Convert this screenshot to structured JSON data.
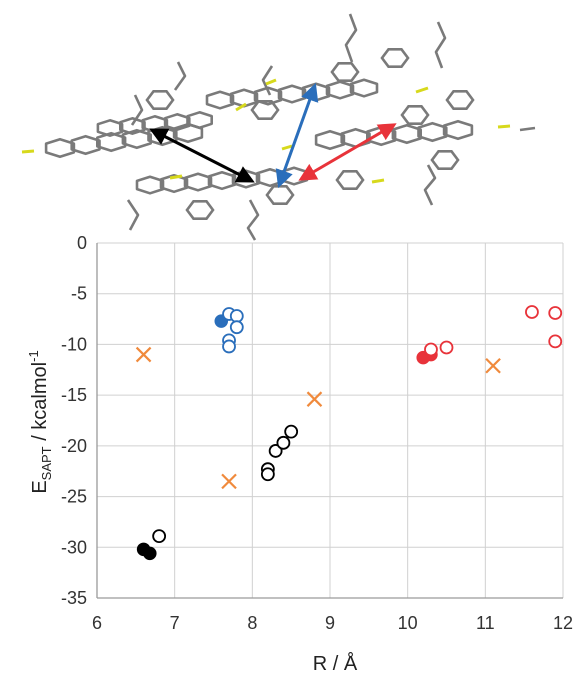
{
  "chart_data": {
    "type": "scatter",
    "xlabel": "R / Å",
    "ylabel_main": "E",
    "ylabel_sub": "SAPT",
    "ylabel_units": " / kcalmol",
    "ylabel_sup": "-1",
    "xlim": [
      6,
      12
    ],
    "ylim": [
      -35,
      0
    ],
    "x_ticks": [
      "6",
      "7",
      "8",
      "9",
      "10",
      "11",
      "12"
    ],
    "y_ticks": [
      "0",
      "-5",
      "-10",
      "-15",
      "-20",
      "-25",
      "-30",
      "-35"
    ],
    "grid": true,
    "colors": {
      "black": "#000000",
      "blue": "#2a6ebb",
      "red": "#e8333a",
      "orange": "#f08a3c",
      "grid": "#d0d0d0",
      "axis": "#9a9a9a",
      "bond": "#7a7a7a",
      "sulfur": "#d7d91c"
    },
    "series": [
      {
        "color": "black",
        "marker": "filled-circle",
        "points": [
          [
            6.6,
            -30.2
          ],
          [
            6.68,
            -30.6
          ]
        ]
      },
      {
        "color": "black",
        "marker": "open-circle",
        "points": [
          [
            6.8,
            -28.9
          ],
          [
            8.2,
            -22.3
          ],
          [
            8.2,
            -22.8
          ],
          [
            8.3,
            -20.5
          ],
          [
            8.4,
            -19.7
          ],
          [
            8.5,
            -18.6
          ]
        ]
      },
      {
        "color": "blue",
        "marker": "filled-circle",
        "points": [
          [
            7.6,
            -7.7
          ]
        ]
      },
      {
        "color": "blue",
        "marker": "open-circle",
        "points": [
          [
            7.7,
            -7.0
          ],
          [
            7.8,
            -7.2
          ],
          [
            7.8,
            -8.3
          ],
          [
            7.7,
            -9.6
          ],
          [
            7.7,
            -10.2
          ]
        ]
      },
      {
        "color": "red",
        "marker": "filled-circle",
        "points": [
          [
            10.2,
            -11.3
          ],
          [
            10.3,
            -11.0
          ]
        ]
      },
      {
        "color": "red",
        "marker": "open-circle",
        "points": [
          [
            10.3,
            -10.5
          ],
          [
            10.5,
            -10.3
          ],
          [
            11.6,
            -6.8
          ],
          [
            11.9,
            -6.9
          ],
          [
            11.9,
            -9.7
          ]
        ]
      },
      {
        "color": "orange",
        "marker": "cross",
        "points": [
          [
            6.6,
            -11.0
          ],
          [
            7.7,
            -23.5
          ],
          [
            8.8,
            -15.4
          ],
          [
            11.1,
            -12.1
          ]
        ]
      }
    ]
  },
  "inset": {
    "description": "",
    "arrows": [
      {
        "color": "black"
      },
      {
        "color": "blue"
      },
      {
        "color": "red"
      }
    ]
  }
}
